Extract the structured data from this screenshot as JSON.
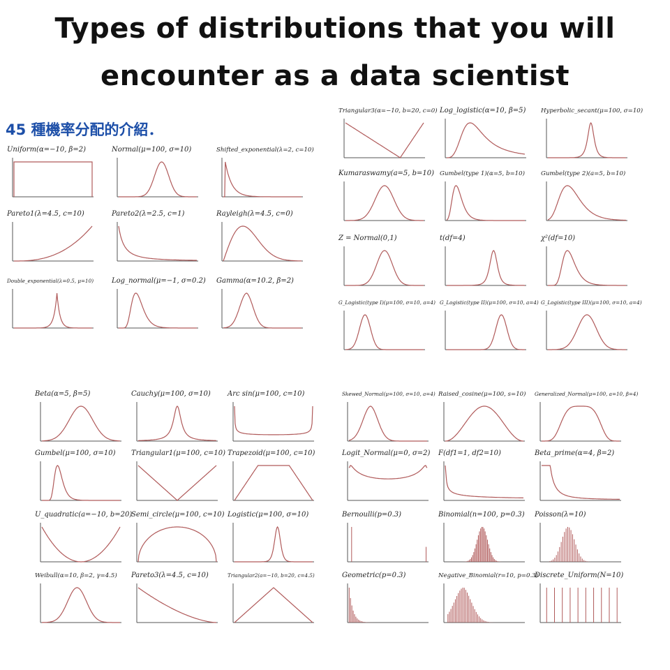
{
  "title_line1": "Types of distributions that you will",
  "title_line2": "encounter as a data scientist",
  "subtitle": "45 種機率分配的介紹．",
  "colors": {
    "curve": "#b05a5a",
    "axis": "#555555",
    "title": "#111111",
    "subtitle": "#1d4fa8"
  },
  "chart_data": [
    {
      "type": "line",
      "title": "Uniform(α=−10, β=2)",
      "shape": "uniform"
    },
    {
      "type": "line",
      "title": "Normal(μ=100, σ=10)",
      "shape": "normal"
    },
    {
      "type": "line",
      "title": "Shifted_exponential(λ=2, c=10)",
      "shape": "shifted-exponential"
    },
    {
      "type": "line",
      "title": "Pareto1(λ=4.5, c=10)",
      "shape": "pareto1"
    },
    {
      "type": "line",
      "title": "Pareto2(λ=2.5, c=1)",
      "shape": "pareto2"
    },
    {
      "type": "line",
      "title": "Rayleigh(λ=4.5, c=0)",
      "shape": "rayleigh"
    },
    {
      "type": "line",
      "title": "Double_exponential(λ=0.5, μ=10)",
      "shape": "double-exponential"
    },
    {
      "type": "line",
      "title": "Log_normal(μ=−1, σ=0.2)",
      "shape": "log-normal"
    },
    {
      "type": "line",
      "title": "Gamma(α=10.2, β=2)",
      "shape": "gamma"
    },
    {
      "type": "line",
      "title": "Triangular3(α=−10, b=20, c=0)",
      "shape": "triangular3"
    },
    {
      "type": "line",
      "title": "Log_logistic(α=10, β=5)",
      "shape": "log-logistic"
    },
    {
      "type": "line",
      "title": "Hyperbolic_secant(μ=100, σ=10)",
      "shape": "hyperbolic-secant"
    },
    {
      "type": "line",
      "title": "Kumaraswamy(a=5, b=10)",
      "shape": "kumaraswamy"
    },
    {
      "type": "line",
      "title": "Gumbel(type 1)(α=5, b=10)",
      "shape": "gumbel-type1"
    },
    {
      "type": "line",
      "title": "Gumbel(type 2)(a=5, b=10)",
      "shape": "gumbel-type2"
    },
    {
      "type": "line",
      "title": "Z = Normal(0,1)",
      "shape": "z-normal"
    },
    {
      "type": "line",
      "title": "t(df=4)",
      "shape": "t"
    },
    {
      "type": "line",
      "title": "χ²(df=10)",
      "shape": "chi-squared"
    },
    {
      "type": "line",
      "title": "G_Logistic(type I)(μ=100, σ=10, a=4)",
      "shape": "g-logistic-1"
    },
    {
      "type": "line",
      "title": "G_Logistic(type II)(μ=100, σ=10, a=4)",
      "shape": "g-logistic-2"
    },
    {
      "type": "line",
      "title": "G_Logistic(type III)(μ=100, σ=10, a=4)",
      "shape": "g-logistic-3"
    },
    {
      "type": "line",
      "title": "Beta(α=5, β=5)",
      "shape": "beta"
    },
    {
      "type": "line",
      "title": "Cauchy(μ=100, σ=10)",
      "shape": "cauchy"
    },
    {
      "type": "line",
      "title": "Arc sin(μ=100, c=10)",
      "shape": "arcsin"
    },
    {
      "type": "line",
      "title": "Gumbel(μ=100, σ=10)",
      "shape": "gumbel"
    },
    {
      "type": "line",
      "title": "Triangular1(μ=100, c=10)",
      "shape": "triangular1"
    },
    {
      "type": "line",
      "title": "Trapezoid(μ=100, c=10)",
      "shape": "trapezoid"
    },
    {
      "type": "line",
      "title": "U_quadratic(a=−10, b=20)",
      "shape": "u-quadratic"
    },
    {
      "type": "line",
      "title": "Semi_circle(μ=100, c=10)",
      "shape": "semi-circle"
    },
    {
      "type": "line",
      "title": "Logistic(μ=100, σ=10)",
      "shape": "logistic"
    },
    {
      "type": "line",
      "title": "Weibull(α=10, β=2, γ=4.5)",
      "shape": "weibull"
    },
    {
      "type": "line",
      "title": "Pareto3(λ=4.5, c=10)",
      "shape": "pareto3"
    },
    {
      "type": "line",
      "title": "Triangular2(a=−10, b=20, c=4.5)",
      "shape": "triangular2"
    },
    {
      "type": "line",
      "title": "Skewed_Normal(μ=100, σ=10, a=4)",
      "shape": "skewed-normal"
    },
    {
      "type": "line",
      "title": "Raised_cosine(μ=100, s=10)",
      "shape": "raised-cosine"
    },
    {
      "type": "line",
      "title": "Generalized_Normal(μ=100, a=10, β=4)",
      "shape": "generalized-normal"
    },
    {
      "type": "line",
      "title": "Logit_Normal(μ=0, σ=2)",
      "shape": "logit-normal"
    },
    {
      "type": "line",
      "title": "F(df1=1, df2=10)",
      "shape": "f"
    },
    {
      "type": "line",
      "title": "Beta_prime(α=4, β=2)",
      "shape": "beta-prime"
    },
    {
      "type": "bar",
      "title": "Bernoulli(p=0.3)",
      "shape": "bernoulli"
    },
    {
      "type": "bar",
      "title": "Binomial(n=100, p=0.3)",
      "shape": "binomial"
    },
    {
      "type": "bar",
      "title": "Poisson(λ=10)",
      "shape": "poisson"
    },
    {
      "type": "bar",
      "title": "Geometric(p=0.3)",
      "shape": "geometric"
    },
    {
      "type": "bar",
      "title": "Negative_Binomial(r=10, p=0.3)",
      "shape": "negative-binomial"
    },
    {
      "type": "bar",
      "title": "Discrete_Uniform(N=10)",
      "shape": "discrete-uniform"
    }
  ]
}
